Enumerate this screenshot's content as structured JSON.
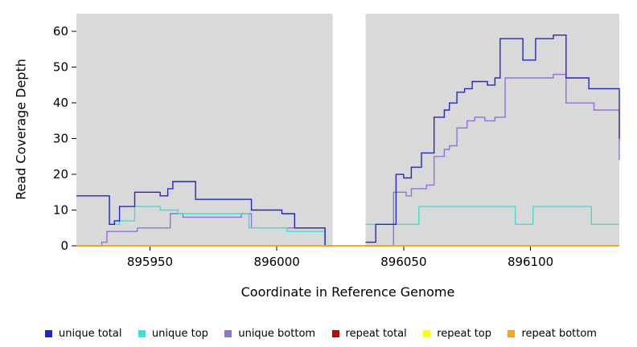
{
  "chart_data": {
    "type": "line",
    "subtype": "step",
    "title": "",
    "xlabel": "Coordinate in Reference Genome",
    "ylabel": "Read Coverage Depth",
    "xlim": [
      895921,
      896135
    ],
    "ylim": [
      0,
      65
    ],
    "xticks": [
      895950,
      896000,
      896050,
      896100
    ],
    "xtick_labels": [
      "895950",
      "896000",
      "896050",
      "896100"
    ],
    "yticks": [
      0,
      10,
      20,
      30,
      40,
      50,
      60
    ],
    "ytick_labels": [
      "0",
      "10",
      "20",
      "30",
      "40",
      "50",
      "60"
    ],
    "grid": false,
    "legend_position": "bottom",
    "plot_bg": "#d9d9d9",
    "page_bg": "#ffffff",
    "axis_color": "#000000",
    "gap_region": {
      "x_start": 896022,
      "x_end": 896035,
      "color": "#ffffff"
    },
    "draw_order": [
      2,
      1,
      0,
      3,
      4,
      5
    ],
    "series": [
      {
        "name": "unique total",
        "color": "#2525cd",
        "segments": [
          [
            [
              895921,
              14
            ],
            [
              895934,
              6
            ],
            [
              895936,
              7
            ],
            [
              895938,
              11
            ],
            [
              895944,
              15
            ],
            [
              895954,
              14
            ],
            [
              895957,
              16
            ],
            [
              895959,
              18
            ],
            [
              895968,
              13
            ],
            [
              895990,
              10
            ],
            [
              896002,
              9
            ],
            [
              896007,
              5
            ],
            [
              896019,
              0
            ],
            [
              896022,
              0
            ]
          ],
          [
            [
              896035,
              1
            ],
            [
              896039,
              6
            ],
            [
              896047,
              20
            ],
            [
              896050,
              19
            ],
            [
              896053,
              22
            ],
            [
              896057,
              26
            ],
            [
              896062,
              36
            ],
            [
              896066,
              38
            ],
            [
              896068,
              40
            ],
            [
              896071,
              43
            ],
            [
              896074,
              44
            ],
            [
              896077,
              46
            ],
            [
              896083,
              45
            ],
            [
              896086,
              47
            ],
            [
              896088,
              58
            ],
            [
              896097,
              52
            ],
            [
              896102,
              58
            ],
            [
              896109,
              59
            ],
            [
              896114,
              47
            ],
            [
              896123,
              44
            ],
            [
              896135,
              30
            ]
          ]
        ]
      },
      {
        "name": "unique top",
        "color": "#40E0D0",
        "segments": [
          [
            [
              895921,
              14
            ],
            [
              895934,
              6
            ],
            [
              895938,
              7
            ],
            [
              895944,
              11
            ],
            [
              895954,
              10
            ],
            [
              895961,
              9
            ],
            [
              895989,
              5
            ],
            [
              896004,
              4
            ],
            [
              896019,
              0
            ],
            [
              896022,
              0
            ]
          ],
          [
            [
              896035,
              6
            ],
            [
              896056,
              11
            ],
            [
              896094,
              6
            ],
            [
              896101,
              11
            ],
            [
              896124,
              6
            ],
            [
              896135,
              6
            ]
          ]
        ]
      },
      {
        "name": "unique bottom",
        "color": "#9370DB",
        "segments": [
          [
            [
              895921,
              0
            ],
            [
              895931,
              1
            ],
            [
              895933,
              4
            ],
            [
              895945,
              5
            ],
            [
              895958,
              9
            ],
            [
              895963,
              8
            ],
            [
              895986,
              9
            ],
            [
              895990,
              5
            ],
            [
              896019,
              0
            ],
            [
              896022,
              0
            ]
          ],
          [
            [
              896035,
              0
            ],
            [
              896046,
              15
            ],
            [
              896051,
              14
            ],
            [
              896053,
              16
            ],
            [
              896059,
              17
            ],
            [
              896062,
              25
            ],
            [
              896066,
              27
            ],
            [
              896068,
              28
            ],
            [
              896071,
              33
            ],
            [
              896075,
              35
            ],
            [
              896078,
              36
            ],
            [
              896082,
              35
            ],
            [
              896086,
              36
            ],
            [
              896090,
              47
            ],
            [
              896109,
              48
            ],
            [
              896114,
              40
            ],
            [
              896125,
              38
            ],
            [
              896135,
              24
            ]
          ]
        ]
      },
      {
        "name": "repeat total",
        "color": "#CC0000",
        "segments": [
          [
            [
              895921,
              0
            ],
            [
              896135,
              0
            ]
          ]
        ]
      },
      {
        "name": "repeat top",
        "color": "#FFFF00",
        "segments": [
          [
            [
              895921,
              0
            ],
            [
              896135,
              0
            ]
          ]
        ]
      },
      {
        "name": "repeat bottom",
        "color": "#FFA500",
        "segments": [
          [
            [
              895921,
              0
            ],
            [
              896135,
              0
            ]
          ]
        ]
      }
    ]
  }
}
